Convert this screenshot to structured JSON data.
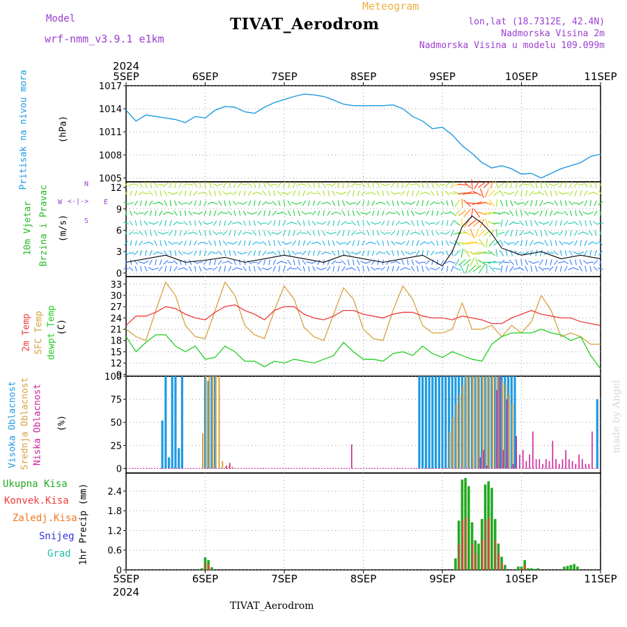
{
  "header": {
    "model_label": "Model",
    "model_name": "wrf-nmm_v3.9.1 e1km",
    "title": "TIVAT_Aerodrom",
    "meteogram_label": "Meteogram",
    "lonlat": "lon,lat (18.7312E, 42.4N)",
    "elevation": "Nadmorska Visina 2m",
    "model_elevation": "Nadmorska Visina u modelu 109.099m"
  },
  "footer_title": "TIVAT_Aerodrom",
  "watermark": "made by Angel",
  "colors": {
    "pressure": "#1e9ae0",
    "temp2m": "#ee3b3b",
    "sfc": "#d8a040",
    "dewpt": "#22cc22",
    "wind_label": "#22bb22",
    "high_cloud": "#1e9ae0",
    "mid_cloud": "#d8a040",
    "low_cloud": "#cc2299",
    "total_precip": "#22aa22",
    "conv_precip": "#ee3b3b",
    "frz_precip": "#ee7722",
    "snow": "#3333dd",
    "grad": "#22bbaa",
    "header_purple": "#9a3fd0",
    "meteogram": "#e8b040"
  },
  "x_axis": {
    "year_top": "2024",
    "year_bottom": "2024",
    "labels": [
      "5SEP",
      "6SEP",
      "7SEP",
      "8SEP",
      "9SEP",
      "10SEP",
      "11SEP"
    ]
  },
  "panels": {
    "pressure": {
      "label": "Pritisak na nivou mora",
      "unit": "(hPa)",
      "ticks": [
        "1017",
        "1014",
        "1011",
        "1008",
        "1005"
      ]
    },
    "wind": {
      "label1": "10m Vjetar",
      "label2": "Brzina i Pravac",
      "unit": "(m/s)",
      "ticks": [
        "12",
        "9",
        "6",
        "3",
        "0"
      ],
      "compass": {
        "n": "N",
        "s": "S",
        "e": "E",
        "w": "W"
      }
    },
    "temp": {
      "label1": "2m Temp",
      "label2": "SFC Temp",
      "label3": "dewpt Temp",
      "unit": "(C)",
      "ticks": [
        "33",
        "30",
        "27",
        "24",
        "21",
        "18",
        "15",
        "12",
        "9"
      ]
    },
    "cloud": {
      "label1": "Visoka Oblacnost",
      "label2": "Srednja Oblacnost",
      "label3": "Niska Oblacnost",
      "unit": "(%)",
      "ticks": [
        "100",
        "75",
        "50",
        "25",
        "0"
      ]
    },
    "precip": {
      "legend": [
        "Ukupna Kisa",
        "Konvek.Kisa",
        "Zaledj.Kisa",
        "Snijeg",
        "Grad"
      ],
      "unit": "1hr Precip (mm)",
      "ticks": [
        "2.4",
        "1.8",
        "1.2",
        "0.6",
        "0"
      ]
    }
  },
  "chart_data": [
    {
      "type": "line",
      "title": "",
      "ylabel": "Pritisak na nivou mora (hPa)",
      "xlim": [
        0,
        144
      ],
      "ylim": [
        1004.5,
        1017
      ],
      "series": [
        {
          "name": "Pritisak na nivou mora",
          "x": [
            0,
            3,
            6,
            9,
            12,
            15,
            18,
            21,
            24,
            27,
            30,
            33,
            36,
            39,
            42,
            45,
            48,
            51,
            54,
            57,
            60,
            62,
            66,
            69,
            72,
            75,
            78,
            81,
            84,
            87,
            90,
            93,
            96,
            99,
            102,
            105,
            108,
            111,
            114,
            117,
            120,
            123,
            126,
            129,
            132,
            135,
            138,
            141,
            144
          ],
          "y": [
            1013.8,
            1012.4,
            1013.2,
            1013.0,
            1012.8,
            1012.6,
            1012.2,
            1013.0,
            1012.8,
            1013.8,
            1014.3,
            1014.2,
            1013.6,
            1013.4,
            1014.2,
            1014.8,
            1015.2,
            1015.6,
            1015.9,
            1015.8,
            1015.6,
            1015.3,
            1014.6,
            1014.4,
            1014.4,
            1014.4,
            1014.4,
            1014.5,
            1014.0,
            1013.0,
            1012.4,
            1011.4,
            1011.6,
            1010.6,
            1009.2,
            1008.2,
            1007.0,
            1006.3,
            1006.6,
            1006.2,
            1005.5,
            1005.6,
            1005.0,
            1005.6,
            1006.2,
            1006.6,
            1007.0,
            1007.8,
            1008.1
          ]
        }
      ]
    },
    {
      "type": "line",
      "title": "",
      "ylabel": "10m Vjetar Brzina i Pravac (m/s)",
      "xlim": [
        0,
        144
      ],
      "ylim": [
        -0.5,
        12.8
      ],
      "series": [
        {
          "name": "10m Vjetar",
          "x": [
            0,
            6,
            12,
            18,
            24,
            30,
            36,
            42,
            48,
            54,
            60,
            66,
            72,
            78,
            84,
            90,
            96,
            99,
            102,
            105,
            108,
            111,
            114,
            120,
            126,
            132,
            138,
            144
          ],
          "y": [
            1.5,
            2.0,
            2.5,
            1.5,
            1.8,
            2.2,
            1.5,
            2.0,
            2.5,
            2.0,
            1.5,
            2.5,
            2.0,
            1.5,
            2.0,
            2.5,
            1.0,
            3.0,
            6.5,
            8.0,
            7.0,
            5.5,
            3.5,
            2.5,
            3.0,
            2.0,
            2.5,
            2.0
          ]
        }
      ]
    },
    {
      "type": "line",
      "title": "",
      "ylabel": "Temp (C)",
      "xlim": [
        0,
        144
      ],
      "ylim": [
        8.5,
        35
      ],
      "series": [
        {
          "name": "2m Temp",
          "x": [
            0,
            3,
            6,
            9,
            12,
            15,
            18,
            21,
            24,
            27,
            30,
            33,
            36,
            39,
            42,
            45,
            48,
            51,
            54,
            57,
            60,
            63,
            66,
            69,
            72,
            75,
            78,
            81,
            84,
            87,
            90,
            93,
            96,
            99,
            102,
            105,
            108,
            111,
            114,
            117,
            120,
            123,
            126,
            129,
            132,
            135,
            138,
            141,
            144
          ],
          "y": [
            22,
            24.5,
            24.5,
            25.5,
            27,
            26.5,
            25,
            24,
            23.5,
            25.5,
            27,
            27.5,
            26,
            25,
            23.5,
            26,
            27,
            27,
            25,
            24,
            23.5,
            24.5,
            26,
            26,
            25,
            24.5,
            24,
            25,
            25.5,
            25.5,
            24.5,
            24,
            24,
            23.5,
            24.5,
            24,
            23.5,
            22.5,
            22.5,
            24,
            25,
            26,
            25,
            24.5,
            24,
            24,
            23,
            22.5,
            22
          ]
        },
        {
          "name": "SFC Temp",
          "x": [
            0,
            3,
            6,
            9,
            12,
            15,
            18,
            21,
            24,
            27,
            30,
            33,
            36,
            39,
            42,
            45,
            48,
            51,
            54,
            57,
            60,
            63,
            66,
            69,
            72,
            75,
            78,
            81,
            84,
            87,
            90,
            93,
            96,
            99,
            102,
            105,
            108,
            111,
            114,
            117,
            120,
            123,
            126,
            129,
            132,
            135,
            138,
            141,
            144
          ],
          "y": [
            21,
            19,
            18,
            26,
            33.5,
            30,
            22,
            19,
            18.5,
            26,
            33.5,
            30,
            22,
            19.5,
            18.5,
            26,
            32.5,
            29,
            21.5,
            19,
            18,
            25,
            32,
            29,
            21,
            18.5,
            18,
            26,
            32.5,
            29,
            22,
            20,
            20,
            21,
            28,
            21,
            21,
            22,
            19,
            22,
            20,
            23,
            30,
            26,
            19,
            20,
            19,
            17,
            17
          ]
        },
        {
          "name": "dewpt Temp",
          "x": [
            0,
            3,
            6,
            9,
            12,
            15,
            18,
            21,
            24,
            27,
            30,
            33,
            36,
            39,
            42,
            45,
            48,
            51,
            54,
            57,
            60,
            63,
            66,
            69,
            72,
            75,
            78,
            81,
            84,
            87,
            90,
            93,
            96,
            99,
            102,
            105,
            108,
            111,
            114,
            117,
            120,
            123,
            126,
            129,
            132,
            135,
            138,
            141,
            144
          ],
          "y": [
            19,
            15,
            17.5,
            19.5,
            19.5,
            16.5,
            15,
            16.5,
            13,
            13.5,
            16.5,
            15,
            12.5,
            12.5,
            11,
            12.5,
            12,
            13,
            12.5,
            12,
            13,
            14,
            17.5,
            15,
            13,
            13,
            12.5,
            14.5,
            15,
            14,
            16.5,
            14.5,
            13.5,
            15,
            14,
            13,
            12.5,
            17,
            19,
            20,
            20,
            20,
            21,
            20,
            19.5,
            18,
            19,
            14,
            10.5
          ]
        }
      ]
    },
    {
      "type": "bar",
      "title": "",
      "ylabel": "Oblacnost (%)",
      "xlim": [
        0,
        144
      ],
      "ylim": [
        -5,
        100
      ],
      "series": [
        {
          "name": "Visoka Oblacnost",
          "x": [
            11,
            12,
            13,
            14,
            15,
            16,
            17,
            24,
            25,
            26,
            27,
            89,
            90,
            91,
            92,
            93,
            94,
            95,
            96,
            97,
            98,
            99,
            100,
            101,
            102,
            103,
            104,
            105,
            106,
            107,
            108,
            109,
            110,
            111,
            112,
            113,
            114,
            115,
            116,
            117,
            118,
            143
          ],
          "y": [
            52,
            100,
            12,
            100,
            100,
            22,
            100,
            100,
            95,
            100,
            100,
            100,
            100,
            100,
            100,
            100,
            100,
            100,
            100,
            100,
            100,
            100,
            100,
            100,
            100,
            100,
            100,
            100,
            100,
            100,
            100,
            100,
            100,
            100,
            100,
            100,
            100,
            100,
            100,
            100,
            100,
            75
          ]
        },
        {
          "name": "Srednja Oblacnost",
          "x": [
            23,
            24,
            25,
            26,
            27,
            28,
            29,
            30,
            31,
            32,
            98,
            99,
            100,
            101,
            102,
            103,
            104,
            105,
            106,
            107,
            108,
            109,
            110,
            111,
            112,
            113,
            114,
            115,
            116,
            117
          ],
          "y": [
            38,
            100,
            100,
            100,
            100,
            100,
            8,
            2,
            3,
            2,
            40,
            55,
            70,
            80,
            90,
            100,
            100,
            100,
            100,
            100,
            100,
            100,
            100,
            100,
            100,
            100,
            95,
            90,
            80,
            70
          ]
        },
        {
          "name": "Niska Oblacnost",
          "x": [
            30,
            31,
            68,
            107,
            108,
            109,
            112,
            113,
            114,
            115,
            117,
            118,
            119,
            120,
            121,
            122,
            123,
            124,
            125,
            126,
            127,
            128,
            129,
            130,
            131,
            132,
            133,
            134,
            135,
            136,
            137,
            138,
            139,
            140,
            141
          ],
          "y": [
            3,
            6,
            26,
            12,
            20,
            3,
            85,
            100,
            20,
            75,
            5,
            35,
            15,
            20,
            8,
            15,
            40,
            10,
            10,
            5,
            10,
            8,
            30,
            10,
            5,
            10,
            20,
            10,
            8,
            5,
            15,
            10,
            5,
            5,
            40
          ]
        }
      ]
    },
    {
      "type": "bar",
      "title": "",
      "ylabel": "1hr Precip (mm)",
      "xlim": [
        0,
        144
      ],
      "ylim": [
        0,
        2.95
      ],
      "series": [
        {
          "name": "Ukupna Kisa",
          "x": [
            23,
            24,
            25,
            26,
            100,
            101,
            102,
            103,
            104,
            105,
            106,
            107,
            108,
            109,
            110,
            111,
            112,
            113,
            114,
            115,
            119,
            120,
            121,
            122,
            123,
            124,
            125,
            133,
            134,
            135,
            136,
            137
          ],
          "y": [
            0.05,
            0.38,
            0.3,
            0.08,
            0.35,
            1.5,
            2.75,
            2.8,
            2.55,
            1.45,
            0.9,
            0.8,
            1.55,
            2.6,
            2.7,
            2.5,
            1.55,
            0.8,
            0.4,
            0.15,
            0.1,
            0.1,
            0.3,
            0.05,
            0.05,
            0.03,
            0.05,
            0.1,
            0.12,
            0.15,
            0.18,
            0.1
          ]
        },
        {
          "name": "Konvek.Kisa",
          "x": [
            24,
            25,
            101,
            102,
            103,
            105,
            106,
            108,
            109,
            110,
            112,
            113,
            114,
            120,
            121
          ],
          "y": [
            0.2,
            0.15,
            0.8,
            1.5,
            1.6,
            0.8,
            0.5,
            0.9,
            1.5,
            1.6,
            0.9,
            0.5,
            0.2,
            0.05,
            0.15
          ]
        }
      ]
    }
  ]
}
